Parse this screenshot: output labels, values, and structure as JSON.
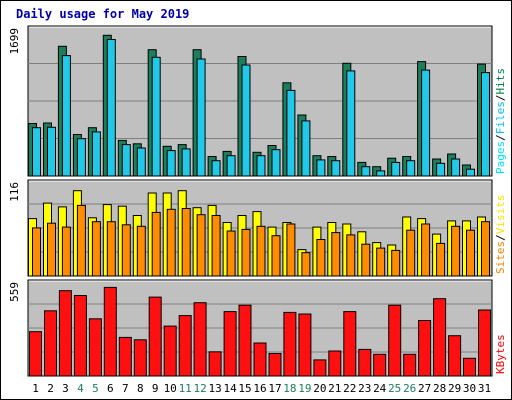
{
  "chart_data": [
    {
      "type": "bar",
      "title": "Daily usage for May 2019",
      "panel": "top",
      "categories": [
        "1",
        "2",
        "3",
        "4",
        "5",
        "6",
        "7",
        "8",
        "9",
        "10",
        "11",
        "12",
        "13",
        "14",
        "15",
        "16",
        "17",
        "18",
        "19",
        "20",
        "21",
        "22",
        "23",
        "24",
        "25",
        "26",
        "27",
        "28",
        "29",
        "30",
        "31"
      ],
      "max_label": "1699",
      "ylim": [
        0,
        1699
      ],
      "right_legend": [
        {
          "name": "Hits",
          "color": "#008040"
        },
        {
          "name": "/",
          "color": "#000000"
        },
        {
          "name": "Files",
          "color": "#00c0ff"
        },
        {
          "name": "/",
          "color": "#000000"
        },
        {
          "name": "Pages",
          "color": "#00e0ff"
        }
      ],
      "series": [
        {
          "name": "Hits",
          "color": "#1a7f5a",
          "values": [
            620,
            625,
            1530,
            490,
            570,
            1660,
            420,
            380,
            1490,
            350,
            370,
            1490,
            230,
            290,
            1410,
            280,
            360,
            1100,
            720,
            240,
            230,
            1330,
            160,
            110,
            210,
            230,
            1350,
            200,
            260,
            130,
            1320
          ]
        },
        {
          "name": "Files",
          "color": "#21c8e8",
          "values": [
            570,
            575,
            1420,
            440,
            520,
            1610,
            370,
            330,
            1400,
            300,
            320,
            1380,
            180,
            240,
            1310,
            240,
            310,
            1010,
            650,
            190,
            180,
            1240,
            110,
            60,
            160,
            180,
            1250,
            150,
            200,
            80,
            1220
          ]
        }
      ]
    },
    {
      "type": "bar",
      "panel": "middle",
      "categories": [
        "1",
        "2",
        "3",
        "4",
        "5",
        "6",
        "7",
        "8",
        "9",
        "10",
        "11",
        "12",
        "13",
        "14",
        "15",
        "16",
        "17",
        "18",
        "19",
        "20",
        "21",
        "22",
        "23",
        "24",
        "25",
        "26",
        "27",
        "28",
        "29",
        "30",
        "31"
      ],
      "max_label": "116",
      "ylim": [
        0,
        116
      ],
      "right_legend": [
        {
          "name": "Visits",
          "color": "#ffe000"
        },
        {
          "name": "/",
          "color": "#000000"
        },
        {
          "name": "Sites",
          "color": "#ff8000"
        }
      ],
      "series": [
        {
          "name": "Visits",
          "color": "#ffff00",
          "values": [
            74,
            94,
            89,
            110,
            75,
            92,
            90,
            78,
            107,
            107,
            110,
            88,
            91,
            69,
            78,
            83,
            63,
            69,
            34,
            63,
            69,
            67,
            57,
            43,
            40,
            76,
            74,
            54,
            71,
            71,
            76
          ]
        },
        {
          "name": "Sites",
          "color": "#ff8c00",
          "values": [
            62,
            68,
            63,
            91,
            70,
            70,
            66,
            64,
            82,
            86,
            87,
            79,
            78,
            58,
            60,
            64,
            52,
            67,
            30,
            47,
            56,
            53,
            41,
            36,
            33,
            59,
            67,
            42,
            64,
            59,
            70
          ]
        }
      ]
    },
    {
      "type": "bar",
      "panel": "bottom",
      "categories": [
        "1",
        "2",
        "3",
        "4",
        "5",
        "6",
        "7",
        "8",
        "9",
        "10",
        "11",
        "12",
        "13",
        "14",
        "15",
        "16",
        "17",
        "18",
        "19",
        "20",
        "21",
        "22",
        "23",
        "24",
        "25",
        "26",
        "27",
        "28",
        "29",
        "30",
        "31"
      ],
      "max_label": "559",
      "ylim": [
        0,
        559
      ],
      "right_legend": [
        {
          "name": "KBytes",
          "color": "#ff0000"
        }
      ],
      "series": [
        {
          "name": "KBytes",
          "color": "#ff1010",
          "values": [
            275,
            405,
            530,
            500,
            355,
            550,
            240,
            225,
            490,
            310,
            375,
            455,
            150,
            400,
            440,
            205,
            140,
            395,
            385,
            100,
            155,
            400,
            165,
            135,
            440,
            135,
            345,
            480,
            250,
            110,
            410
          ]
        }
      ]
    }
  ],
  "x_axis": {
    "labels": [
      "1",
      "2",
      "3",
      "4",
      "5",
      "6",
      "7",
      "8",
      "9",
      "10",
      "11",
      "12",
      "13",
      "14",
      "15",
      "16",
      "17",
      "18",
      "19",
      "20",
      "21",
      "22",
      "23",
      "24",
      "25",
      "26",
      "27",
      "28",
      "29",
      "30",
      "31"
    ],
    "highlight_days": [
      "4",
      "5",
      "11",
      "12",
      "18",
      "19",
      "25",
      "26"
    ],
    "label_color": "#000000",
    "highlight_color": "#1a7f5a"
  },
  "colors": {
    "background": "#ffffff",
    "plot_bg": "#c0c0c0",
    "gridline": "#808080",
    "title_color": "#0000aa"
  }
}
